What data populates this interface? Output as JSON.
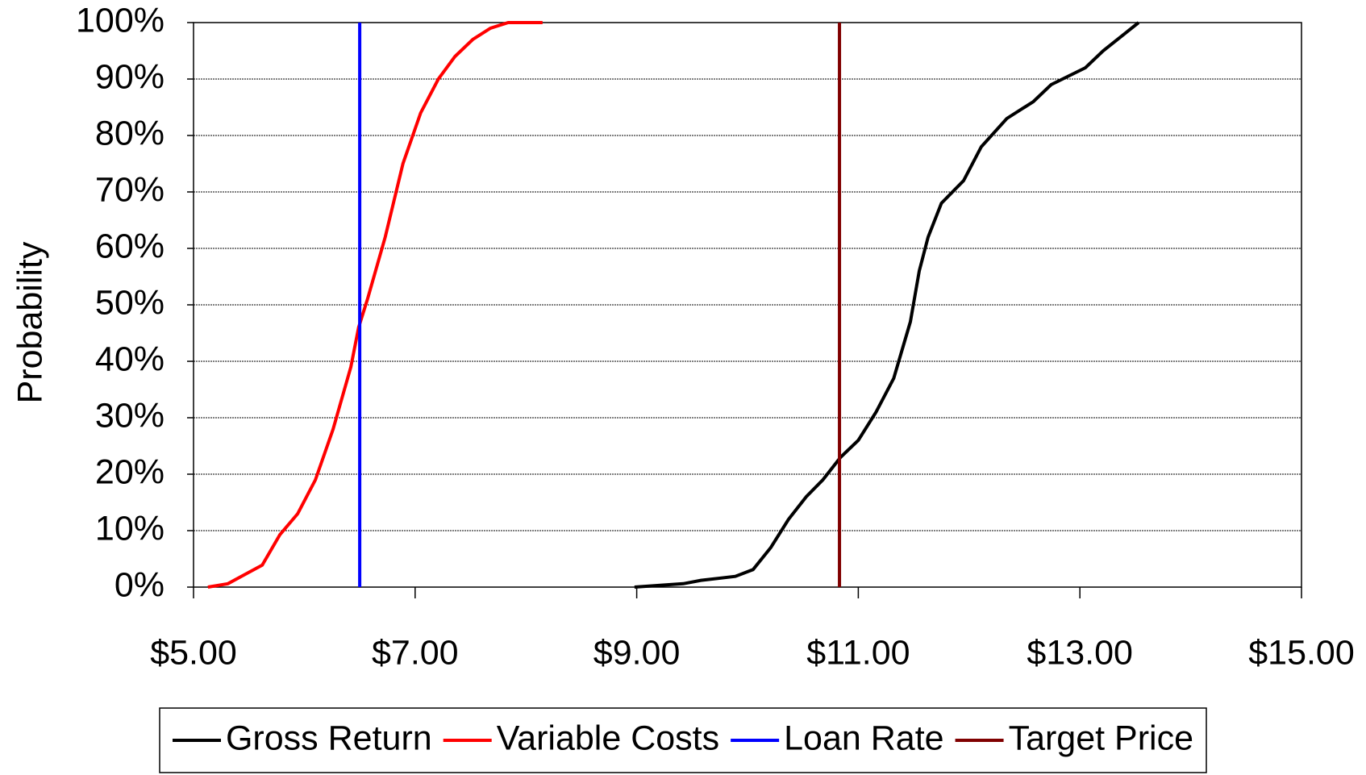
{
  "chart_data": {
    "type": "line",
    "ylabel": "Probability",
    "xlim": [
      5,
      15
    ],
    "xticks": [
      {
        "value": 5,
        "label": "$5.00"
      },
      {
        "value": 7,
        "label": "$7.00"
      },
      {
        "value": 9,
        "label": "$9.00"
      },
      {
        "value": 11,
        "label": "$11.00"
      },
      {
        "value": 13,
        "label": "$13.00"
      },
      {
        "value": 15,
        "label": "$15.00"
      }
    ],
    "ylim": [
      0,
      100
    ],
    "yticks": [
      {
        "value": 0,
        "label": "0%"
      },
      {
        "value": 10,
        "label": "10%"
      },
      {
        "value": 20,
        "label": "20%"
      },
      {
        "value": 30,
        "label": "30%"
      },
      {
        "value": 40,
        "label": "40%"
      },
      {
        "value": 50,
        "label": "50%"
      },
      {
        "value": 60,
        "label": "60%"
      },
      {
        "value": 70,
        "label": "70%"
      },
      {
        "value": 80,
        "label": "80%"
      },
      {
        "value": 90,
        "label": "90%"
      },
      {
        "value": 100,
        "label": "100%"
      }
    ],
    "grid": true,
    "legend": "bottom",
    "series": [
      {
        "name": "Gross Return",
        "color": "#000000",
        "x": [
          8.98,
          9.42,
          9.58,
          9.89,
          10.05,
          10.21,
          10.37,
          10.53,
          10.68,
          10.84,
          11.0,
          11.16,
          11.32,
          11.47,
          11.55,
          11.63,
          11.75,
          11.95,
          12.11,
          12.34,
          12.58,
          12.74,
          13.05,
          13.21,
          13.53
        ],
        "values": [
          0,
          0.6,
          1.2,
          1.9,
          3.1,
          7,
          12,
          16,
          19,
          23,
          26,
          31,
          37,
          47,
          56,
          62,
          68,
          72,
          78,
          83,
          86,
          89,
          92,
          95,
          100
        ]
      },
      {
        "name": "Variable Costs",
        "color": "#ff0000",
        "x": [
          5.13,
          5.31,
          5.47,
          5.62,
          5.78,
          5.94,
          6.1,
          6.26,
          6.42,
          6.49,
          6.57,
          6.73,
          6.89,
          7.05,
          7.21,
          7.36,
          7.52,
          7.68,
          7.84,
          8.15
        ],
        "values": [
          0,
          0.6,
          2.3,
          3.9,
          9.3,
          13,
          19,
          28,
          39,
          46,
          51,
          62,
          75,
          84,
          90,
          94,
          97,
          99,
          100,
          100
        ]
      },
      {
        "name": "Loan Rate",
        "color": "#0000ff",
        "x": [
          6.5,
          6.5
        ],
        "values": [
          0,
          100
        ]
      },
      {
        "name": "Target Price",
        "color": "#800000",
        "x": [
          10.83,
          10.83
        ],
        "values": [
          0,
          100
        ]
      }
    ]
  }
}
